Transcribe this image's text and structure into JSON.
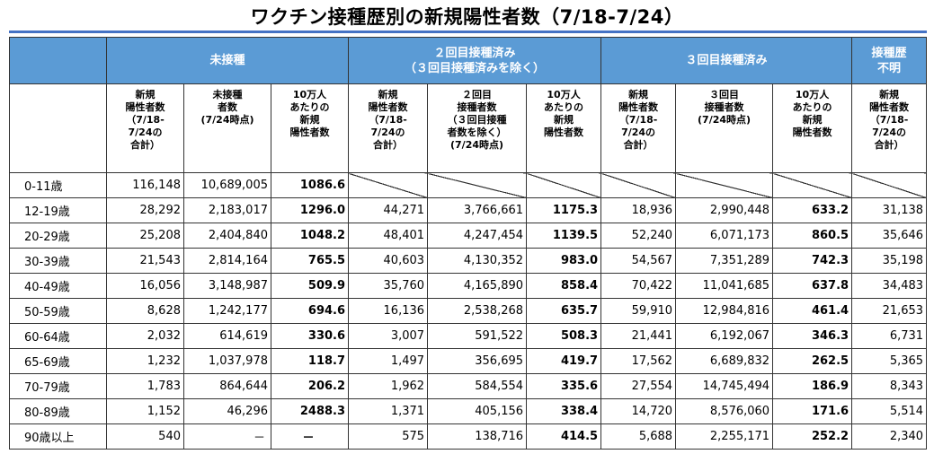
{
  "title": "ワクチン接種歴別の新規陽性者数（7/18-7/24）",
  "groups": {
    "unvaccinated": "未接種",
    "two_dose_line1": "２回目接種済み",
    "two_dose_line2": "（３回目接種済みを除く）",
    "three_dose": "３回目接種済み",
    "unknown_line1": "接種歴",
    "unknown_line2": "不明"
  },
  "subheaders": {
    "unvac_new": [
      "新規",
      "陽性者数",
      "（7/18-",
      "7/24の",
      "合計）"
    ],
    "unvac_pop": [
      "未接種",
      "者数",
      "(7/24時点)"
    ],
    "unvac_rate": [
      "10万人",
      "あたりの",
      "新規",
      "陽性者数"
    ],
    "two_new": [
      "新規",
      "陽性者数",
      "（7/18-",
      "7/24の",
      "合計）"
    ],
    "two_pop": [
      "２回目",
      "接種者数",
      "（３回目接種",
      "者数を除く）",
      "(7/24時点)"
    ],
    "two_rate": [
      "10万人",
      "あたりの",
      "新規",
      "陽性者数"
    ],
    "three_new": [
      "新規",
      "陽性者数",
      "（7/18-",
      "7/24の",
      "合計）"
    ],
    "three_pop": [
      "３回目",
      "接種者数",
      "(7/24時点)"
    ],
    "three_rate": [
      "10万人",
      "あたりの",
      "新規",
      "陽性者数"
    ],
    "unknown_new": [
      "新規",
      "陽性者数",
      "（7/18-",
      "7/24の",
      "合計）"
    ]
  },
  "rows": [
    {
      "age": "0-11歳",
      "unvac_new": "116,148",
      "unvac_pop": "10,689,005",
      "unvac_rate": "1086.6",
      "two_new": "",
      "two_pop": "",
      "two_rate": "",
      "three_new": "",
      "three_pop": "",
      "three_rate": "",
      "unknown_new": ""
    },
    {
      "age": "12-19歳",
      "unvac_new": "28,292",
      "unvac_pop": "2,183,017",
      "unvac_rate": "1296.0",
      "two_new": "44,271",
      "two_pop": "3,766,661",
      "two_rate": "1175.3",
      "three_new": "18,936",
      "three_pop": "2,990,448",
      "three_rate": "633.2",
      "unknown_new": "31,138"
    },
    {
      "age": "20-29歳",
      "unvac_new": "25,208",
      "unvac_pop": "2,404,840",
      "unvac_rate": "1048.2",
      "two_new": "48,401",
      "two_pop": "4,247,454",
      "two_rate": "1139.5",
      "three_new": "52,240",
      "three_pop": "6,071,173",
      "three_rate": "860.5",
      "unknown_new": "35,646"
    },
    {
      "age": "30-39歳",
      "unvac_new": "21,543",
      "unvac_pop": "2,814,164",
      "unvac_rate": "765.5",
      "two_new": "40,603",
      "two_pop": "4,130,352",
      "two_rate": "983.0",
      "three_new": "54,567",
      "three_pop": "7,351,289",
      "three_rate": "742.3",
      "unknown_new": "35,198"
    },
    {
      "age": "40-49歳",
      "unvac_new": "16,056",
      "unvac_pop": "3,148,987",
      "unvac_rate": "509.9",
      "two_new": "35,760",
      "two_pop": "4,165,890",
      "two_rate": "858.4",
      "three_new": "70,422",
      "three_pop": "11,041,685",
      "three_rate": "637.8",
      "unknown_new": "34,483"
    },
    {
      "age": "50-59歳",
      "unvac_new": "8,628",
      "unvac_pop": "1,242,177",
      "unvac_rate": "694.6",
      "two_new": "16,136",
      "two_pop": "2,538,268",
      "two_rate": "635.7",
      "three_new": "59,910",
      "three_pop": "12,984,816",
      "three_rate": "461.4",
      "unknown_new": "21,653"
    },
    {
      "age": "60-64歳",
      "unvac_new": "2,032",
      "unvac_pop": "614,619",
      "unvac_rate": "330.6",
      "two_new": "3,007",
      "two_pop": "591,522",
      "two_rate": "508.3",
      "three_new": "21,441",
      "three_pop": "6,192,067",
      "three_rate": "346.3",
      "unknown_new": "6,731"
    },
    {
      "age": "65-69歳",
      "unvac_new": "1,232",
      "unvac_pop": "1,037,978",
      "unvac_rate": "118.7",
      "two_new": "1,497",
      "two_pop": "356,695",
      "two_rate": "419.7",
      "three_new": "17,562",
      "three_pop": "6,689,832",
      "three_rate": "262.5",
      "unknown_new": "5,365"
    },
    {
      "age": "70-79歳",
      "unvac_new": "1,783",
      "unvac_pop": "864,644",
      "unvac_rate": "206.2",
      "two_new": "1,962",
      "two_pop": "584,554",
      "two_rate": "335.6",
      "three_new": "27,554",
      "three_pop": "14,745,494",
      "three_rate": "186.9",
      "unknown_new": "8,343"
    },
    {
      "age": "80-89歳",
      "unvac_new": "1,152",
      "unvac_pop": "46,296",
      "unvac_rate": "2488.3",
      "two_new": "1,371",
      "two_pop": "405,156",
      "two_rate": "338.4",
      "three_new": "14,720",
      "three_pop": "8,576,060",
      "three_rate": "171.6",
      "unknown_new": "5,514"
    },
    {
      "age": "90歳以上",
      "unvac_new": "540",
      "unvac_pop": "－",
      "unvac_rate": "－",
      "two_new": "575",
      "two_pop": "138,716",
      "two_rate": "414.5",
      "three_new": "5,688",
      "three_pop": "2,255,171",
      "three_rate": "252.2",
      "unknown_new": "2,340"
    }
  ],
  "colors": {
    "header_blue": "#5b9bd5",
    "title_rule": "#4472c4"
  }
}
